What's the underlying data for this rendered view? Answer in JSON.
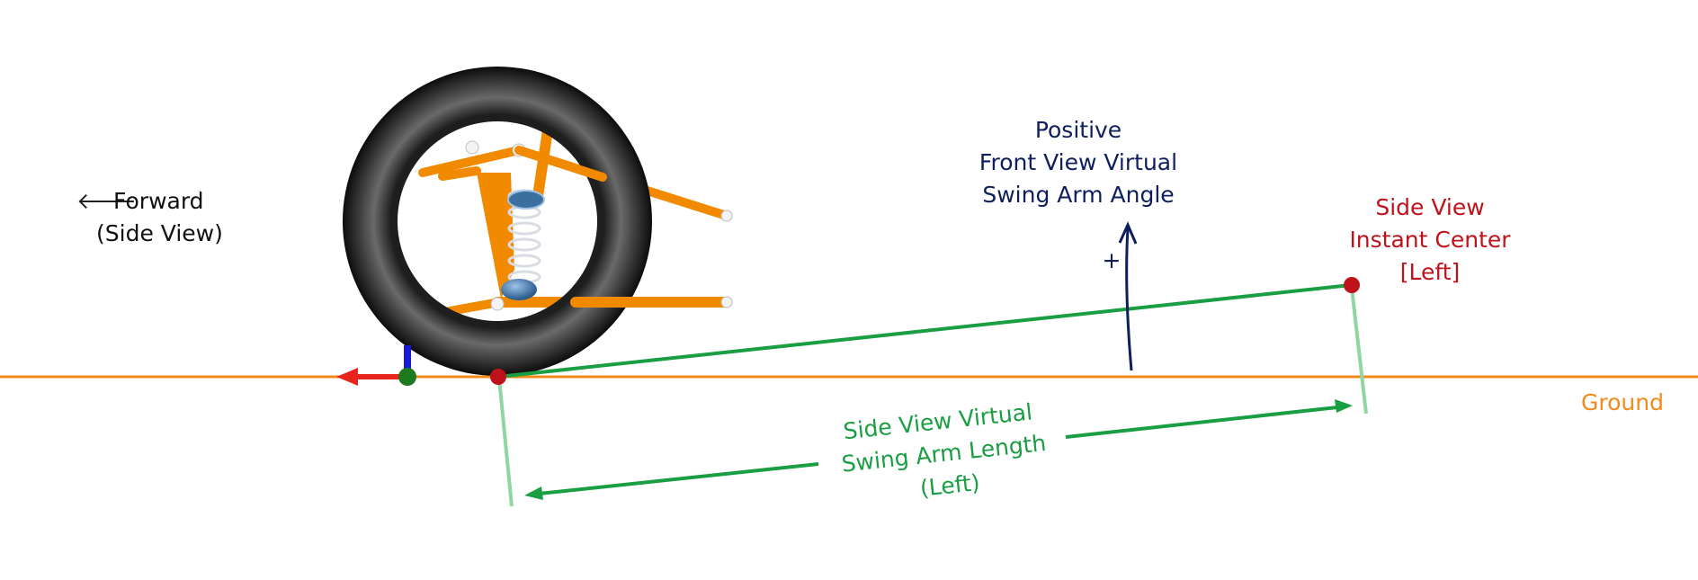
{
  "labels": {
    "forward_arrow": "🡐",
    "forward_line1": "Forward",
    "forward_line2": "(Side View)",
    "angle_line1": "Positive",
    "angle_line2": "Front View Virtual",
    "angle_line3": "Swing Arm Angle",
    "plus_sign": "+",
    "ic_line1": "Side View",
    "ic_line2": "Instant Center",
    "ic_line3": "[Left]",
    "ground": "Ground",
    "length_line1": "Side View Virtual",
    "length_line2": "Swing Arm Length",
    "length_line3": "(Left)"
  },
  "colors": {
    "ground": "#f28a1c",
    "swing_arm": "#1a9e43",
    "swing_arm_light": "#8fd6a0",
    "instant_center": "#c0121a",
    "angle_text": "#0d1f5c",
    "tire": "#4a4a4a",
    "suspension": "#f28a00",
    "axis_x": "#e8241c",
    "axis_y": "#1a1ad6",
    "axis_z": "#1e7a1e"
  }
}
